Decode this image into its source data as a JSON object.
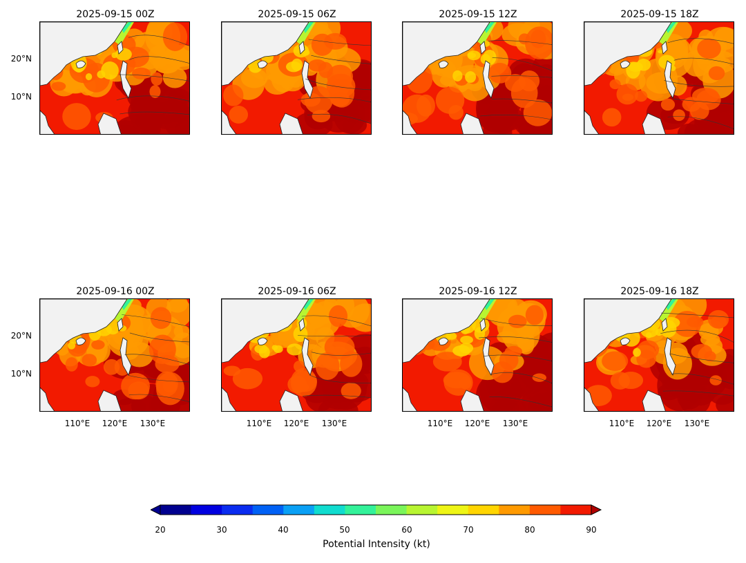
{
  "panels": [
    {
      "title": "2025-09-15 00Z"
    },
    {
      "title": "2025-09-15 06Z"
    },
    {
      "title": "2025-09-15 12Z"
    },
    {
      "title": "2025-09-15 18Z"
    },
    {
      "title": "2025-09-16 00Z"
    },
    {
      "title": "2025-09-16 06Z"
    },
    {
      "title": "2025-09-16 12Z"
    },
    {
      "title": "2025-09-16 18Z"
    }
  ],
  "lat_ticks": [
    "20°N",
    "10°N"
  ],
  "lon_ticks": [
    "110°E",
    "120°E",
    "130°E"
  ],
  "colorbar": {
    "label": "Potential Intensity (kt)",
    "ticks": [
      "20",
      "30",
      "40",
      "50",
      "60",
      "70",
      "80",
      "90"
    ],
    "levels": [
      20,
      25,
      30,
      35,
      40,
      45,
      50,
      55,
      60,
      65,
      70,
      75,
      80,
      85,
      90
    ],
    "colors": [
      "#00008f",
      "#0000e0",
      "#0a2cf0",
      "#0061f5",
      "#0aa0f5",
      "#10dccf",
      "#33f29a",
      "#7af55a",
      "#b8f531",
      "#eef516",
      "#ffd500",
      "#ff9a00",
      "#ff5a00",
      "#f21a00",
      "#b00000"
    ],
    "extend": "both"
  },
  "colors": {
    "land": "#f2f2f2",
    "coast": "#222222"
  }
}
